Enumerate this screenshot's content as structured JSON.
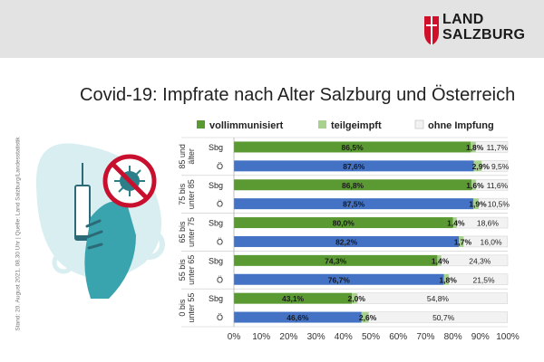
{
  "header": {
    "logo_line1": "LAND",
    "logo_line2": "SALZBURG"
  },
  "title": "Covid-19: Impfrate nach Alter Salzburg und Österreich",
  "source": "Stand: 20. August 2021, 08.30 Uhr | Quelle: Land Salzburg/Landesstatistik",
  "colors": {
    "vollimmunisiert_sbg": "#5b9a32",
    "vollimmunisiert_oe": "#4472c4",
    "teilgeimpft": "#a9d18e",
    "ohne_impfung": "#f2f2f2",
    "logo_red": "#d0102a"
  },
  "chart_data": {
    "type": "bar",
    "orientation": "horizontal",
    "stacked": true,
    "legend": [
      "vollimmunisiert",
      "teilgeimpft",
      "ohne Impfung"
    ],
    "legend_position": "top",
    "xlim": [
      0,
      100
    ],
    "x_ticks": [
      "0%",
      "10%",
      "20%",
      "30%",
      "40%",
      "50%",
      "60%",
      "70%",
      "80%",
      "90%",
      "100%"
    ],
    "groups": [
      {
        "label_lines": [
          "85 und",
          "älter"
        ],
        "rows": [
          {
            "region": "Sbg",
            "voll": 86.5,
            "teil": 1.8,
            "ohne": 11.7,
            "labels": [
              "86,5%",
              "1,8%",
              "11,7%"
            ]
          },
          {
            "region": "Ö",
            "voll": 87.6,
            "teil": 2.9,
            "ohne": 9.5,
            "labels": [
              "87,6%",
              "2,9%",
              "9,5%"
            ]
          }
        ]
      },
      {
        "label_lines": [
          "75 bis",
          "unter 85"
        ],
        "rows": [
          {
            "region": "Sbg",
            "voll": 86.8,
            "teil": 1.6,
            "ohne": 11.6,
            "labels": [
              "86,8%",
              "1,6%",
              "11,6%"
            ]
          },
          {
            "region": "Ö",
            "voll": 87.5,
            "teil": 1.9,
            "ohne": 10.5,
            "labels": [
              "87,5%",
              "1,9%",
              "10,5%"
            ]
          }
        ]
      },
      {
        "label_lines": [
          "65 bis",
          "unter 75"
        ],
        "rows": [
          {
            "region": "Sbg",
            "voll": 80.0,
            "teil": 1.4,
            "ohne": 18.6,
            "labels": [
              "80,0%",
              "1,4%",
              "18,6%"
            ]
          },
          {
            "region": "Ö",
            "voll": 82.2,
            "teil": 1.7,
            "ohne": 16.0,
            "labels": [
              "82,2%",
              "1,7%",
              "16,0%"
            ]
          }
        ]
      },
      {
        "label_lines": [
          "55 bis",
          "unter 65"
        ],
        "rows": [
          {
            "region": "Sbg",
            "voll": 74.3,
            "teil": 1.4,
            "ohne": 24.3,
            "labels": [
              "74,3%",
              "1,4%",
              "24,3%"
            ]
          },
          {
            "region": "Ö",
            "voll": 76.7,
            "teil": 1.8,
            "ohne": 21.5,
            "labels": [
              "76,7%",
              "1,8%",
              "21,5%"
            ]
          }
        ]
      },
      {
        "label_lines": [
          "0 bis",
          "unter 55"
        ],
        "rows": [
          {
            "region": "Sbg",
            "voll": 43.1,
            "teil": 2.0,
            "ohne": 54.8,
            "labels": [
              "43,1%",
              "2,0%",
              "54,8%"
            ]
          },
          {
            "region": "Ö",
            "voll": 46.6,
            "teil": 2.6,
            "ohne": 50.7,
            "labels": [
              "46,6%",
              "2,6%",
              "50,7%"
            ]
          }
        ]
      }
    ]
  }
}
